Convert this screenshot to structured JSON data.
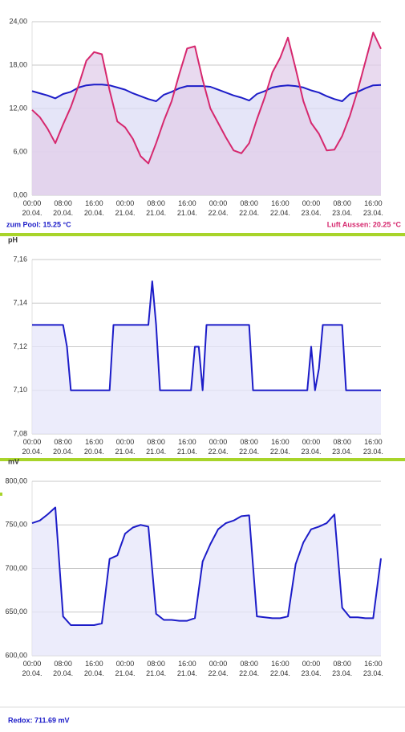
{
  "chart_data": [
    {
      "type": "line",
      "x": [
        "20.04. 00:00",
        "20.04. 02:00",
        "20.04. 04:00",
        "20.04. 06:00",
        "20.04. 08:00",
        "20.04. 10:00",
        "20.04. 12:00",
        "20.04. 14:00",
        "20.04. 16:00",
        "20.04. 18:00",
        "20.04. 20:00",
        "20.04. 22:00",
        "21.04. 00:00",
        "21.04. 02:00",
        "21.04. 04:00",
        "21.04. 06:00",
        "21.04. 08:00",
        "21.04. 10:00",
        "21.04. 12:00",
        "21.04. 14:00",
        "21.04. 16:00",
        "21.04. 18:00",
        "21.04. 20:00",
        "21.04. 22:00",
        "22.04. 00:00",
        "22.04. 02:00",
        "22.04. 04:00",
        "22.04. 06:00",
        "22.04. 08:00",
        "22.04. 10:00",
        "22.04. 12:00",
        "22.04. 14:00",
        "22.04. 16:00",
        "22.04. 18:00",
        "22.04. 20:00",
        "22.04. 22:00",
        "23.04. 00:00",
        "23.04. 02:00",
        "23.04. 04:00",
        "23.04. 06:00",
        "23.04. 08:00",
        "23.04. 10:00",
        "23.04. 12:00",
        "23.04. 14:00",
        "23.04. 16:00",
        "23.04. 18:00"
      ],
      "series": [
        {
          "name": "zum Pool: 15.25 °C",
          "color": "#1c1cc8",
          "fill_color": "#dcdcf6",
          "values": [
            14.4,
            14.1,
            13.8,
            13.4,
            14.0,
            14.3,
            14.9,
            15.2,
            15.3,
            15.3,
            15.2,
            14.9,
            14.6,
            14.1,
            13.7,
            13.3,
            13.0,
            13.9,
            14.3,
            14.8,
            15.1,
            15.1,
            15.1,
            15.0,
            14.6,
            14.2,
            13.8,
            13.5,
            13.1,
            14.0,
            14.4,
            14.9,
            15.1,
            15.2,
            15.1,
            14.9,
            14.5,
            14.2,
            13.7,
            13.3,
            13.0,
            14.0,
            14.3,
            14.8,
            15.2,
            15.25
          ]
        },
        {
          "name": "Luft Aussen: 20.25 °C",
          "color": "#d6286e",
          "fill_color": "#e2cdea",
          "values": [
            11.8,
            10.8,
            9.2,
            7.2,
            9.8,
            12.2,
            15.2,
            18.6,
            19.8,
            19.5,
            14.5,
            10.2,
            9.4,
            7.8,
            5.4,
            4.4,
            7.2,
            10.3,
            13,
            16.8,
            20.3,
            20.6,
            16,
            12,
            10,
            8,
            6.2,
            5.8,
            7.2,
            10.5,
            13.5,
            17,
            19,
            21.8,
            17.5,
            13,
            10,
            8.5,
            6.2,
            6.3,
            8.2,
            11,
            14.5,
            18.5,
            22.5,
            20.25
          ]
        }
      ],
      "xlim": [
        "20.04. 00:00",
        "23.04. 18:00"
      ],
      "xticks": [
        {
          "value": "20.04. 00:00",
          "label": [
            "00:00",
            "20.04."
          ]
        },
        {
          "value": "20.04. 08:00",
          "label": [
            "08:00",
            "20.04."
          ]
        },
        {
          "value": "20.04. 16:00",
          "label": [
            "16:00",
            "20.04."
          ]
        },
        {
          "value": "21.04. 00:00",
          "label": [
            "00:00",
            "21.04."
          ]
        },
        {
          "value": "21.04. 08:00",
          "label": [
            "08:00",
            "21.04."
          ]
        },
        {
          "value": "21.04. 16:00",
          "label": [
            "16:00",
            "21.04."
          ]
        },
        {
          "value": "22.04. 00:00",
          "label": [
            "00:00",
            "22.04."
          ]
        },
        {
          "value": "22.04. 08:00",
          "label": [
            "08:00",
            "22.04."
          ]
        },
        {
          "value": "22.04. 16:00",
          "label": [
            "16:00",
            "22.04."
          ]
        },
        {
          "value": "23.04. 00:00",
          "label": [
            "00:00",
            "23.04."
          ]
        },
        {
          "value": "23.04. 08:00",
          "label": [
            "08:00",
            "23.04."
          ]
        },
        {
          "value": "23.04. 16:00",
          "label": [
            "16:00",
            "23.04."
          ]
        }
      ],
      "ylim": [
        0,
        24
      ],
      "yticks": [
        {
          "value": 0,
          "label": "0,00"
        },
        {
          "value": 6,
          "label": "6,00"
        },
        {
          "value": 12,
          "label": "12,00"
        },
        {
          "value": 18,
          "label": "18,00"
        },
        {
          "value": 24,
          "label": "24,00"
        }
      ],
      "grid": true,
      "legend": "bottom"
    },
    {
      "type": "line",
      "ylabel": "pH",
      "x": [
        "20.04. 00:00",
        "20.04. 01:00",
        "20.04. 02:00",
        "20.04. 03:00",
        "20.04. 04:00",
        "20.04. 05:00",
        "20.04. 06:00",
        "20.04. 07:00",
        "20.04. 08:00",
        "20.04. 09:00",
        "20.04. 10:00",
        "20.04. 11:00",
        "20.04. 12:00",
        "20.04. 13:00",
        "20.04. 14:00",
        "20.04. 15:00",
        "20.04. 16:00",
        "20.04. 17:00",
        "20.04. 18:00",
        "20.04. 19:00",
        "20.04. 20:00",
        "20.04. 21:00",
        "20.04. 22:00",
        "20.04. 23:00",
        "21.04. 00:00",
        "21.04. 01:00",
        "21.04. 02:00",
        "21.04. 03:00",
        "21.04. 04:00",
        "21.04. 05:00",
        "21.04. 06:00",
        "21.04. 07:00",
        "21.04. 08:00",
        "21.04. 09:00",
        "21.04. 10:00",
        "21.04. 11:00",
        "21.04. 12:00",
        "21.04. 13:00",
        "21.04. 14:00",
        "21.04. 15:00",
        "21.04. 16:00",
        "21.04. 17:00",
        "21.04. 18:00",
        "21.04. 19:00",
        "21.04. 20:00",
        "21.04. 21:00",
        "21.04. 22:00",
        "21.04. 23:00",
        "22.04. 00:00",
        "22.04. 01:00",
        "22.04. 02:00",
        "22.04. 03:00",
        "22.04. 04:00",
        "22.04. 05:00",
        "22.04. 06:00",
        "22.04. 07:00",
        "22.04. 08:00",
        "22.04. 09:00",
        "22.04. 10:00",
        "22.04. 11:00",
        "22.04. 12:00",
        "22.04. 13:00",
        "22.04. 14:00",
        "22.04. 15:00",
        "22.04. 16:00",
        "22.04. 17:00",
        "22.04. 18:00",
        "22.04. 19:00",
        "22.04. 20:00",
        "22.04. 21:00",
        "22.04. 22:00",
        "22.04. 23:00",
        "23.04. 00:00",
        "23.04. 01:00",
        "23.04. 02:00",
        "23.04. 03:00",
        "23.04. 04:00",
        "23.04. 05:00",
        "23.04. 06:00",
        "23.04. 07:00",
        "23.04. 08:00",
        "23.04. 09:00",
        "23.04. 10:00",
        "23.04. 11:00",
        "23.04. 12:00",
        "23.04. 13:00",
        "23.04. 14:00",
        "23.04. 15:00",
        "23.04. 16:00",
        "23.04. 17:00",
        "23.04. 18:00"
      ],
      "series": [
        {
          "color": "#1c1cc8",
          "fill_color": "#e6e6fa",
          "values": [
            7.13,
            7.13,
            7.13,
            7.13,
            7.13,
            7.13,
            7.13,
            7.13,
            7.13,
            7.12,
            7.1,
            7.1,
            7.1,
            7.1,
            7.1,
            7.1,
            7.1,
            7.1,
            7.1,
            7.1,
            7.1,
            7.13,
            7.13,
            7.13,
            7.13,
            7.13,
            7.13,
            7.13,
            7.13,
            7.13,
            7.13,
            7.15,
            7.13,
            7.1,
            7.1,
            7.1,
            7.1,
            7.1,
            7.1,
            7.1,
            7.1,
            7.1,
            7.12,
            7.12,
            7.1,
            7.13,
            7.13,
            7.13,
            7.13,
            7.13,
            7.13,
            7.13,
            7.13,
            7.13,
            7.13,
            7.13,
            7.13,
            7.1,
            7.1,
            7.1,
            7.1,
            7.1,
            7.1,
            7.1,
            7.1,
            7.1,
            7.1,
            7.1,
            7.1,
            7.1,
            7.1,
            7.1,
            7.12,
            7.1,
            7.11,
            7.13,
            7.13,
            7.13,
            7.13,
            7.13,
            7.13,
            7.1,
            7.1,
            7.1,
            7.1,
            7.1,
            7.1,
            7.1,
            7.1,
            7.1,
            7.1
          ]
        }
      ],
      "xlim": [
        "20.04. 00:00",
        "23.04. 18:00"
      ],
      "xticks": [
        {
          "value": "20.04. 00:00",
          "label": [
            "00:00",
            "20.04."
          ]
        },
        {
          "value": "20.04. 08:00",
          "label": [
            "08:00",
            "20.04."
          ]
        },
        {
          "value": "20.04. 16:00",
          "label": [
            "16:00",
            "20.04."
          ]
        },
        {
          "value": "21.04. 00:00",
          "label": [
            "00:00",
            "21.04."
          ]
        },
        {
          "value": "21.04. 08:00",
          "label": [
            "08:00",
            "21.04."
          ]
        },
        {
          "value": "21.04. 16:00",
          "label": [
            "16:00",
            "21.04."
          ]
        },
        {
          "value": "22.04. 00:00",
          "label": [
            "00:00",
            "22.04."
          ]
        },
        {
          "value": "22.04. 08:00",
          "label": [
            "08:00",
            "22.04."
          ]
        },
        {
          "value": "22.04. 16:00",
          "label": [
            "16:00",
            "22.04."
          ]
        },
        {
          "value": "23.04. 00:00",
          "label": [
            "00:00",
            "23.04."
          ]
        },
        {
          "value": "23.04. 08:00",
          "label": [
            "08:00",
            "23.04."
          ]
        },
        {
          "value": "23.04. 16:00",
          "label": [
            "16:00",
            "23.04."
          ]
        }
      ],
      "ylim": [
        7.08,
        7.16
      ],
      "yticks": [
        {
          "value": 7.08,
          "label": "7,08"
        },
        {
          "value": 7.1,
          "label": "7,10"
        },
        {
          "value": 7.12,
          "label": "7,12"
        },
        {
          "value": 7.14,
          "label": "7,14"
        },
        {
          "value": 7.16,
          "label": "7,16"
        }
      ],
      "grid": true
    },
    {
      "type": "line",
      "ylabel": "mV",
      "x": [
        "20.04. 00:00",
        "20.04. 02:00",
        "20.04. 04:00",
        "20.04. 06:00",
        "20.04. 08:00",
        "20.04. 10:00",
        "20.04. 12:00",
        "20.04. 14:00",
        "20.04. 16:00",
        "20.04. 18:00",
        "20.04. 20:00",
        "20.04. 22:00",
        "21.04. 00:00",
        "21.04. 02:00",
        "21.04. 04:00",
        "21.04. 06:00",
        "21.04. 08:00",
        "21.04. 10:00",
        "21.04. 12:00",
        "21.04. 14:00",
        "21.04. 16:00",
        "21.04. 18:00",
        "21.04. 20:00",
        "21.04. 22:00",
        "22.04. 00:00",
        "22.04. 02:00",
        "22.04. 04:00",
        "22.04. 06:00",
        "22.04. 08:00",
        "22.04. 10:00",
        "22.04. 12:00",
        "22.04. 14:00",
        "22.04. 16:00",
        "22.04. 18:00",
        "22.04. 20:00",
        "22.04. 22:00",
        "23.04. 00:00",
        "23.04. 02:00",
        "23.04. 04:00",
        "23.04. 06:00",
        "23.04. 08:00",
        "23.04. 10:00",
        "23.04. 12:00",
        "23.04. 14:00",
        "23.04. 16:00",
        "23.04. 18:00"
      ],
      "series": [
        {
          "name": "Redox: 711.69 mV",
          "color": "#1c1cc8",
          "fill_color": "#e6e6fa",
          "values": [
            752,
            755,
            762,
            770,
            645,
            635,
            635,
            635,
            635,
            637,
            711,
            715,
            740,
            747,
            750,
            748,
            648,
            641,
            641,
            640,
            640,
            643,
            708,
            728,
            745,
            752,
            755,
            760,
            761,
            645,
            644,
            643,
            643,
            645,
            705,
            730,
            745,
            748,
            752,
            762,
            655,
            644,
            644,
            643,
            643,
            711.69
          ]
        }
      ],
      "xlim": [
        "20.04. 00:00",
        "23.04. 18:00"
      ],
      "xticks": [
        {
          "value": "20.04. 00:00",
          "label": [
            "00:00",
            "20.04."
          ]
        },
        {
          "value": "20.04. 08:00",
          "label": [
            "08:00",
            "20.04."
          ]
        },
        {
          "value": "20.04. 16:00",
          "label": [
            "16:00",
            "20.04."
          ]
        },
        {
          "value": "21.04. 00:00",
          "label": [
            "00:00",
            "21.04."
          ]
        },
        {
          "value": "21.04. 08:00",
          "label": [
            "08:00",
            "21.04."
          ]
        },
        {
          "value": "21.04. 16:00",
          "label": [
            "16:00",
            "21.04."
          ]
        },
        {
          "value": "22.04. 00:00",
          "label": [
            "00:00",
            "22.04."
          ]
        },
        {
          "value": "22.04. 08:00",
          "label": [
            "08:00",
            "22.04."
          ]
        },
        {
          "value": "22.04. 16:00",
          "label": [
            "16:00",
            "22.04."
          ]
        },
        {
          "value": "23.04. 00:00",
          "label": [
            "00:00",
            "23.04."
          ]
        },
        {
          "value": "23.04. 08:00",
          "label": [
            "08:00",
            "23.04."
          ]
        },
        {
          "value": "23.04. 16:00",
          "label": [
            "16:00",
            "23.04."
          ]
        }
      ],
      "ylim": [
        600,
        800
      ],
      "yticks": [
        {
          "value": 600,
          "label": "600,00"
        },
        {
          "value": 650,
          "label": "650,00"
        },
        {
          "value": 700,
          "label": "700,00"
        },
        {
          "value": 750,
          "label": "750,00"
        },
        {
          "value": 800,
          "label": "800,00"
        }
      ],
      "grid": true,
      "legend": "bottom"
    }
  ]
}
